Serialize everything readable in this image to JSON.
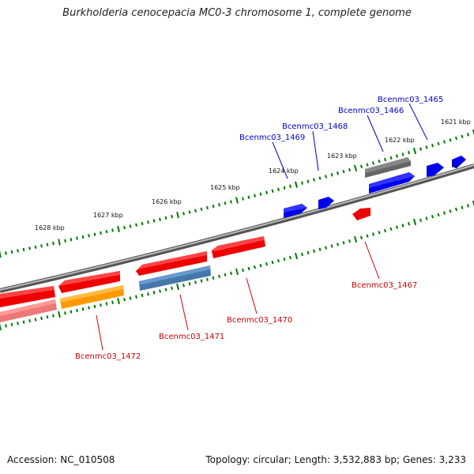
{
  "title": "Burkholderia cenocepacia MC0-3 chromosome 1, complete genome",
  "footer": {
    "accession": "Accession: NC_010508",
    "summary": "Topology: circular; Length: 3,532,883 bp; Genes: 3,233"
  },
  "colors": {
    "backbone": "#808080",
    "forward_gene": "#0000ee",
    "reverse_gene": "#ee0000",
    "rna_gene": "#ff9900",
    "other_gene": "#666666",
    "pseudo_gene": "#4477aa",
    "tick": "#007700",
    "forward_label": "#0000cc",
    "reverse_label": "#cc0000"
  },
  "scale_labels": [
    "1621 kbp",
    "1622 kbp",
    "1623 kbp",
    "1624 kbp",
    "1625 kbp",
    "1626 kbp",
    "1627 kbp",
    "1628 kbp"
  ],
  "gene_labels": {
    "top": [
      "Bcenmc03_1465",
      "Bcenmc03_1466",
      "Bcenmc03_1468",
      "Bcenmc03_1469"
    ],
    "bottom": [
      "Bcenmc03_1467",
      "Bcenmc03_1470",
      "Bcenmc03_1471",
      "Bcenmc03_1472"
    ]
  }
}
